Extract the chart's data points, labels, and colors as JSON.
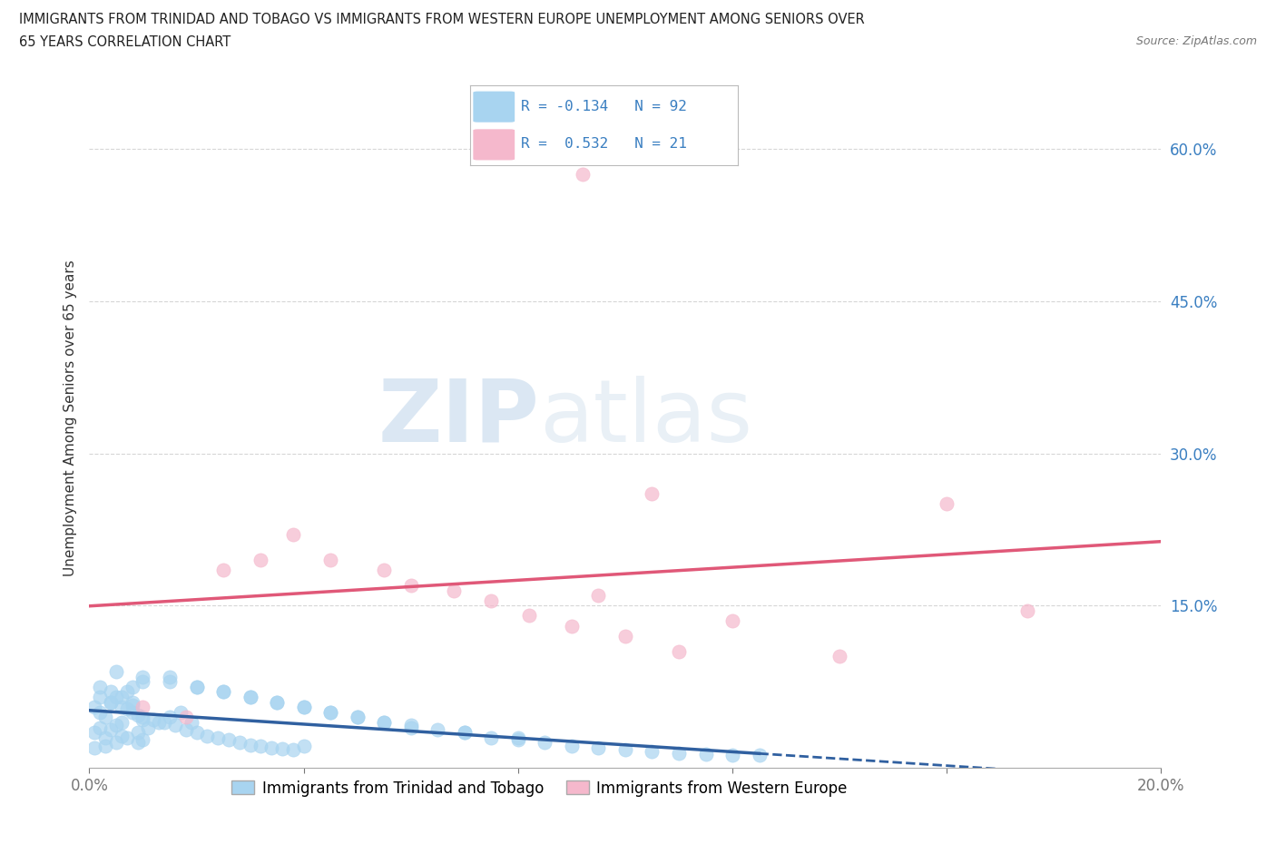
{
  "title_line1": "IMMIGRANTS FROM TRINIDAD AND TOBAGO VS IMMIGRANTS FROM WESTERN EUROPE UNEMPLOYMENT AMONG SENIORS OVER",
  "title_line2": "65 YEARS CORRELATION CHART",
  "source": "Source: ZipAtlas.com",
  "ylabel": "Unemployment Among Seniors over 65 years",
  "x_min": 0.0,
  "x_max": 0.2,
  "y_min": -0.01,
  "y_max": 0.68,
  "y_tick_labels": [
    "15.0%",
    "30.0%",
    "45.0%",
    "60.0%"
  ],
  "y_tick_vals": [
    0.15,
    0.3,
    0.45,
    0.6
  ],
  "blue_color": "#a8d4f0",
  "blue_color_dark": "#3a7fc1",
  "blue_line_color": "#3060a0",
  "pink_color": "#f5b8cc",
  "pink_line_color": "#e05878",
  "blue_R": -0.134,
  "blue_N": 92,
  "pink_R": 0.532,
  "pink_N": 21,
  "legend_label_blue": "Immigrants from Trinidad and Tobago",
  "legend_label_pink": "Immigrants from Western Europe",
  "watermark_zip": "ZIP",
  "watermark_atlas": "atlas",
  "background_color": "#ffffff",
  "grid_color": "#cccccc",
  "blue_scatter_x": [
    0.001,
    0.002,
    0.003,
    0.004,
    0.005,
    0.006,
    0.007,
    0.008,
    0.009,
    0.01,
    0.001,
    0.002,
    0.003,
    0.004,
    0.005,
    0.006,
    0.007,
    0.008,
    0.009,
    0.01,
    0.001,
    0.003,
    0.005,
    0.007,
    0.009,
    0.011,
    0.013,
    0.015,
    0.017,
    0.019,
    0.002,
    0.004,
    0.006,
    0.008,
    0.01,
    0.012,
    0.014,
    0.016,
    0.018,
    0.02,
    0.022,
    0.024,
    0.026,
    0.028,
    0.03,
    0.032,
    0.034,
    0.036,
    0.038,
    0.04,
    0.002,
    0.004,
    0.006,
    0.008,
    0.01,
    0.015,
    0.02,
    0.025,
    0.03,
    0.035,
    0.04,
    0.045,
    0.05,
    0.055,
    0.06,
    0.065,
    0.07,
    0.075,
    0.08,
    0.085,
    0.09,
    0.095,
    0.1,
    0.105,
    0.11,
    0.115,
    0.12,
    0.125,
    0.005,
    0.01,
    0.015,
    0.02,
    0.025,
    0.03,
    0.035,
    0.04,
    0.045,
    0.05,
    0.055,
    0.06,
    0.07,
    0.08
  ],
  "blue_scatter_y": [
    0.05,
    0.045,
    0.04,
    0.055,
    0.06,
    0.035,
    0.065,
    0.07,
    0.042,
    0.038,
    0.025,
    0.03,
    0.02,
    0.028,
    0.032,
    0.022,
    0.048,
    0.052,
    0.015,
    0.018,
    0.01,
    0.012,
    0.015,
    0.02,
    0.025,
    0.03,
    0.035,
    0.04,
    0.045,
    0.035,
    0.06,
    0.055,
    0.05,
    0.045,
    0.04,
    0.038,
    0.035,
    0.032,
    0.028,
    0.025,
    0.022,
    0.02,
    0.018,
    0.015,
    0.013,
    0.012,
    0.01,
    0.009,
    0.008,
    0.012,
    0.07,
    0.065,
    0.06,
    0.055,
    0.075,
    0.08,
    0.07,
    0.065,
    0.06,
    0.055,
    0.05,
    0.045,
    0.04,
    0.035,
    0.032,
    0.028,
    0.025,
    0.02,
    0.018,
    0.015,
    0.012,
    0.01,
    0.008,
    0.006,
    0.005,
    0.004,
    0.003,
    0.003,
    0.085,
    0.08,
    0.075,
    0.07,
    0.065,
    0.06,
    0.055,
    0.05,
    0.045,
    0.04,
    0.035,
    0.03,
    0.025,
    0.02
  ],
  "pink_scatter_x": [
    0.01,
    0.018,
    0.025,
    0.032,
    0.038,
    0.045,
    0.055,
    0.06,
    0.068,
    0.075,
    0.082,
    0.09,
    0.095,
    0.1,
    0.105,
    0.092,
    0.11,
    0.12,
    0.14,
    0.16,
    0.175
  ],
  "pink_scatter_y": [
    0.05,
    0.04,
    0.185,
    0.195,
    0.22,
    0.195,
    0.185,
    0.17,
    0.165,
    0.155,
    0.14,
    0.13,
    0.16,
    0.12,
    0.26,
    0.575,
    0.105,
    0.135,
    0.1,
    0.25,
    0.145
  ]
}
